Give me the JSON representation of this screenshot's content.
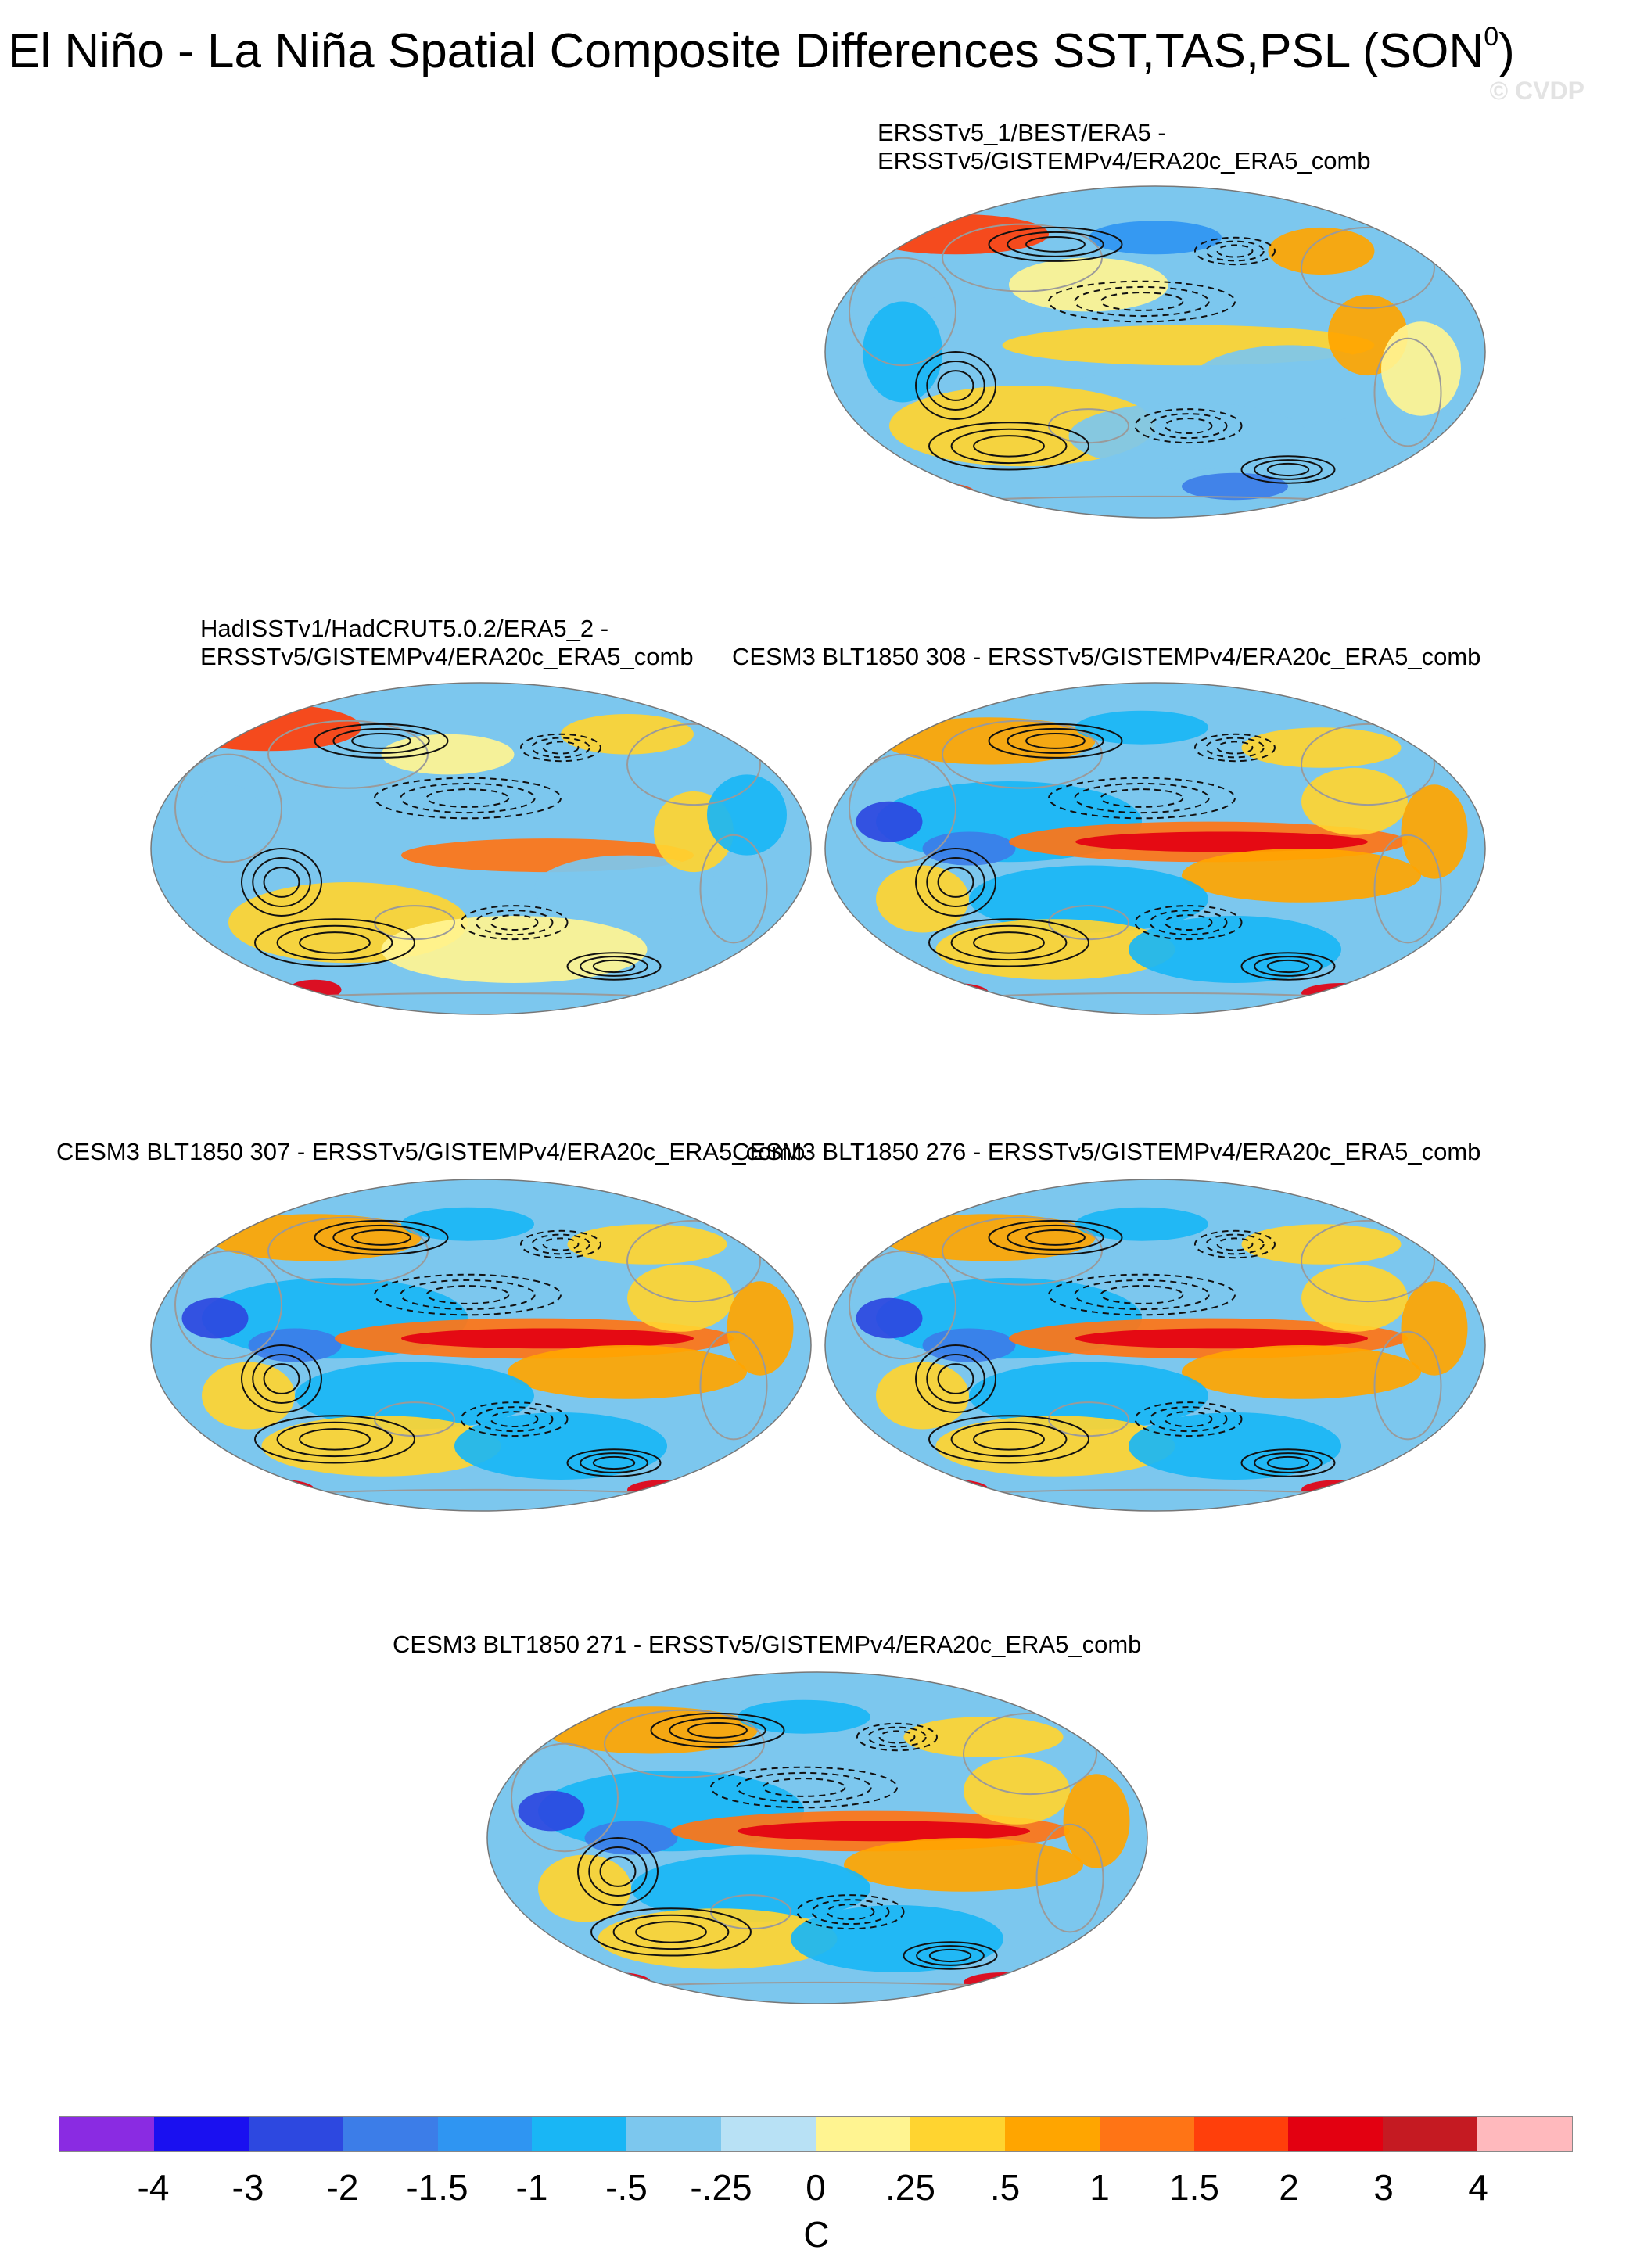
{
  "title": {
    "main": "El Niño - La Niña Spatial Composite Differences SST,TAS,PSL (SON",
    "superscript": "0",
    "close": ")"
  },
  "watermark": "© CVDP",
  "panels": [
    {
      "id": "p1",
      "label_line1": "ERSSTv5_1/BEST/ERA5 -",
      "label_line2": "ERSSTv5/GISTEMPv4/ERA20c_ERA5_comb",
      "pattern": "obs_weak"
    },
    {
      "id": "p2",
      "label_line1": "HadISSTv1/HadCRUT5.0.2/ERA5_2 -",
      "label_line2": "ERSSTv5/GISTEMPv4/ERA20c_ERA5_comb",
      "pattern": "obs_tongue"
    },
    {
      "id": "p3",
      "label_line1": "CESM3 BLT1850 308 - ERSSTv5/GISTEMPv4/ERA20c_ERA5_comb",
      "label_line2": "",
      "pattern": "model_strong"
    },
    {
      "id": "p4",
      "label_line1": "CESM3 BLT1850 307 - ERSSTv5/GISTEMPv4/ERA20c_ERA5_comb",
      "label_line2": "",
      "pattern": "model_strong"
    },
    {
      "id": "p5",
      "label_line1": "CESM3 BLT1850 276 - ERSSTv5/GISTEMPv4/ERA20c_ERA5_comb",
      "label_line2": "",
      "pattern": "model_strong"
    },
    {
      "id": "p6",
      "label_line1": "CESM3 BLT1850 271 - ERSSTv5/GISTEMPv4/ERA20c_ERA5_comb",
      "label_line2": "",
      "pattern": "model_strong"
    }
  ],
  "chart_data": {
    "type": "heatmap",
    "projection": "Robinson (Pacific-centered)",
    "variables": [
      "SST",
      "TAS",
      "PSL"
    ],
    "season": "SON",
    "year_superscript": "0",
    "shading": "SST/TAS composite difference",
    "contours": "PSL composite difference (solid positive, dashed negative)",
    "colorbar": {
      "units": "C",
      "tick_labels": [
        "-4",
        "-3",
        "-2",
        "-1.5",
        "-1",
        "-.5",
        "-.25",
        "0",
        ".25",
        ".5",
        "1",
        "1.5",
        "2",
        "3",
        "4"
      ],
      "colors": [
        "#8a2be2",
        "#1a10f0",
        "#2d48e0",
        "#3c7de8",
        "#2f95f2",
        "#19b6f5",
        "#7cc7ee",
        "#b8e1f5",
        "#fff491",
        "#ffd430",
        "#ffa500",
        "#ff7415",
        "#ff3f0b",
        "#e30011",
        "#c51a22",
        "#ffb9bd"
      ]
    }
  }
}
